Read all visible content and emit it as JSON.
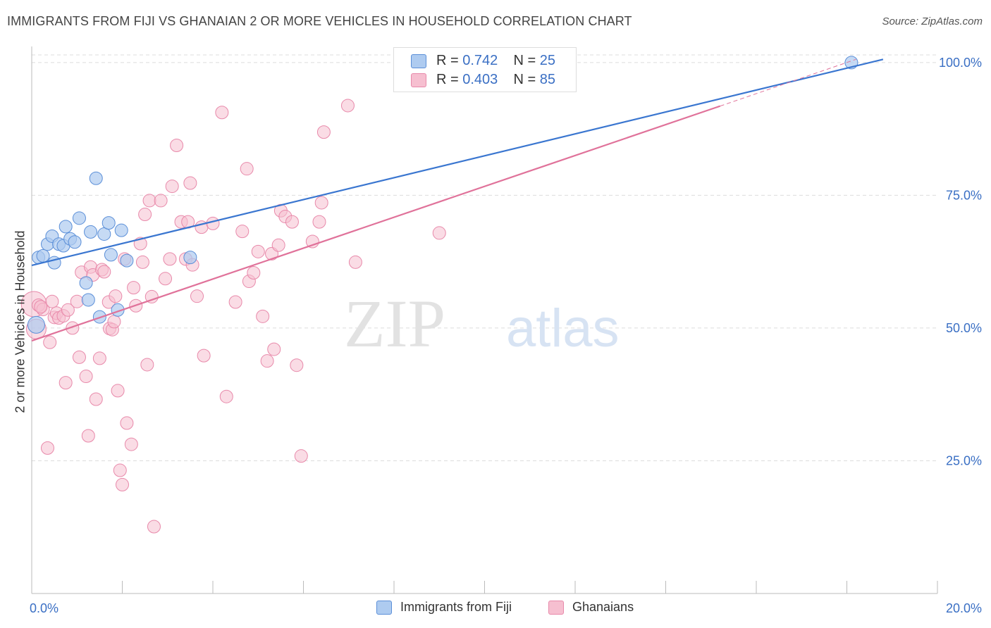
{
  "title": "IMMIGRANTS FROM FIJI VS GHANAIAN 2 OR MORE VEHICLES IN HOUSEHOLD CORRELATION CHART",
  "source": "Source: ZipAtlas.com",
  "watermark": {
    "zip": "ZIP",
    "atlas": "atlas"
  },
  "legend": {
    "rows": [
      {
        "r_label": "R =",
        "r_value": "0.742",
        "n_label": "N =",
        "n_value": "25"
      },
      {
        "r_label": "R =",
        "r_value": "0.403",
        "n_label": "N =",
        "n_value": "85"
      }
    ]
  },
  "bottom_legend": {
    "fiji": "Immigrants from Fiji",
    "ghana": "Ghanaians"
  },
  "colors": {
    "fiji_fill": "#aecbf0",
    "fiji_stroke": "#5b8fd8",
    "fiji_line": "#3a76d0",
    "ghana_fill": "#f6bfd0",
    "ghana_stroke": "#e889aa",
    "ghana_line": "#e0729a",
    "axis_text": "#3a6fc4",
    "grid": "#dddddd"
  },
  "chart_data": {
    "type": "scatter",
    "title": "IMMIGRANTS FROM FIJI VS GHANAIAN 2 OR MORE VEHICLES IN HOUSEHOLD CORRELATION CHART",
    "xlabel": "",
    "ylabel": "2 or more Vehicles in Household",
    "xlim": [
      0,
      20
    ],
    "ylim": [
      0,
      102.5
    ],
    "x_tick_labels": [
      {
        "value": 0,
        "label": "0.0%"
      },
      {
        "value": 20,
        "label": "20.0%"
      }
    ],
    "y_tick_labels": [
      {
        "value": 25,
        "label": "25.0%"
      },
      {
        "value": 50,
        "label": "50.0%"
      },
      {
        "value": 75,
        "label": "75.0%"
      },
      {
        "value": 100,
        "label": "100.0%"
      }
    ],
    "grid": true,
    "legend_position": "top-center",
    "series": [
      {
        "name": "Immigrants from Fiji",
        "r": 0.742,
        "n": 25,
        "trend": {
          "x0": 0,
          "y0": 61.8,
          "x1": 18.8,
          "y1": 100.6
        },
        "points": [
          [
            0.15,
            63.3
          ],
          [
            0.25,
            63.6
          ],
          [
            0.35,
            65.8
          ],
          [
            0.45,
            67.3
          ],
          [
            0.5,
            62.3
          ],
          [
            0.6,
            65.8
          ],
          [
            0.7,
            65.5
          ],
          [
            0.75,
            69.1
          ],
          [
            0.85,
            66.8
          ],
          [
            0.95,
            66.2
          ],
          [
            1.05,
            70.7
          ],
          [
            1.2,
            58.5
          ],
          [
            1.25,
            55.3
          ],
          [
            1.3,
            68.1
          ],
          [
            1.42,
            78.2
          ],
          [
            1.5,
            52.1
          ],
          [
            1.6,
            67.7
          ],
          [
            1.7,
            69.8
          ],
          [
            1.75,
            63.8
          ],
          [
            1.9,
            53.4
          ],
          [
            1.98,
            68.4
          ],
          [
            2.1,
            62.7
          ],
          [
            3.5,
            63.3
          ],
          [
            0.1,
            50.6
          ],
          [
            18.1,
            100.0
          ]
        ]
      },
      {
        "name": "Ghanaians",
        "r": 0.403,
        "n": 85,
        "trend": {
          "x0": 0,
          "y0": 47.6,
          "x1": 15.2,
          "y1": 91.8
        },
        "trend_dashed": {
          "x0": 15.2,
          "y0": 91.8,
          "x1": 18.2,
          "y1": 100.6
        },
        "points": [
          [
            0.05,
            54.5
          ],
          [
            0.1,
            49.8
          ],
          [
            0.15,
            54.3
          ],
          [
            0.25,
            53.5
          ],
          [
            0.35,
            27.4
          ],
          [
            0.4,
            47.3
          ],
          [
            0.45,
            55.0
          ],
          [
            0.5,
            52.0
          ],
          [
            0.55,
            52.8
          ],
          [
            0.6,
            51.9
          ],
          [
            0.7,
            52.3
          ],
          [
            0.75,
            39.7
          ],
          [
            0.8,
            53.4
          ],
          [
            0.9,
            50.0
          ],
          [
            1.0,
            55.0
          ],
          [
            1.05,
            44.5
          ],
          [
            1.1,
            60.5
          ],
          [
            1.2,
            40.9
          ],
          [
            1.25,
            29.7
          ],
          [
            1.3,
            61.5
          ],
          [
            1.35,
            60.0
          ],
          [
            1.42,
            36.6
          ],
          [
            1.5,
            44.3
          ],
          [
            1.55,
            61.0
          ],
          [
            1.6,
            60.6
          ],
          [
            1.7,
            54.9
          ],
          [
            1.72,
            49.9
          ],
          [
            1.78,
            49.7
          ],
          [
            1.82,
            51.2
          ],
          [
            1.85,
            56.0
          ],
          [
            1.9,
            38.2
          ],
          [
            1.95,
            23.2
          ],
          [
            2.0,
            20.5
          ],
          [
            2.05,
            63.0
          ],
          [
            2.1,
            32.1
          ],
          [
            2.2,
            28.1
          ],
          [
            2.25,
            57.6
          ],
          [
            2.3,
            54.2
          ],
          [
            2.4,
            65.9
          ],
          [
            2.45,
            62.4
          ],
          [
            2.5,
            71.4
          ],
          [
            2.55,
            43.1
          ],
          [
            2.6,
            74.0
          ],
          [
            2.65,
            55.9
          ],
          [
            2.7,
            12.6
          ],
          [
            2.85,
            74.0
          ],
          [
            2.95,
            59.3
          ],
          [
            3.05,
            63.0
          ],
          [
            3.1,
            76.7
          ],
          [
            3.2,
            84.4
          ],
          [
            3.3,
            70.0
          ],
          [
            3.4,
            63.0
          ],
          [
            3.45,
            70.0
          ],
          [
            3.5,
            77.3
          ],
          [
            3.55,
            61.9
          ],
          [
            3.65,
            56.0
          ],
          [
            3.75,
            69.0
          ],
          [
            3.8,
            44.8
          ],
          [
            4.0,
            69.7
          ],
          [
            4.2,
            90.6
          ],
          [
            4.3,
            37.1
          ],
          [
            4.5,
            54.9
          ],
          [
            4.65,
            68.2
          ],
          [
            4.75,
            80.0
          ],
          [
            4.8,
            58.8
          ],
          [
            4.9,
            60.4
          ],
          [
            5.0,
            64.4
          ],
          [
            5.1,
            52.2
          ],
          [
            5.2,
            43.8
          ],
          [
            5.3,
            64.0
          ],
          [
            5.35,
            46.0
          ],
          [
            5.45,
            65.6
          ],
          [
            5.5,
            72.1
          ],
          [
            5.6,
            71.0
          ],
          [
            5.75,
            70.0
          ],
          [
            5.85,
            43.0
          ],
          [
            5.95,
            25.9
          ],
          [
            6.2,
            66.3
          ],
          [
            6.35,
            70.0
          ],
          [
            6.4,
            73.6
          ],
          [
            6.45,
            86.9
          ],
          [
            6.98,
            91.9
          ],
          [
            7.15,
            62.4
          ],
          [
            9.0,
            67.9
          ],
          [
            0.2,
            54.0
          ]
        ]
      }
    ]
  }
}
